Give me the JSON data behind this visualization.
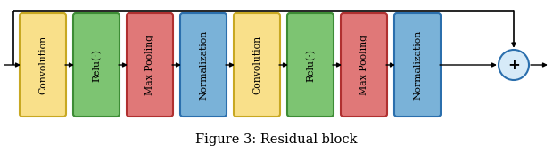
{
  "title": "Figure 3: Residual block",
  "title_fontsize": 10.5,
  "blocks": [
    {
      "label": "Convolution",
      "color": "#F9E08A",
      "edge": "#C8A822"
    },
    {
      "label": "Relu(·)",
      "color": "#7DC472",
      "edge": "#3D8C35"
    },
    {
      "label": "Max Pooling",
      "color": "#E07878",
      "edge": "#B03030"
    },
    {
      "label": "Normalization",
      "color": "#7AB2D8",
      "edge": "#2B6FAD"
    },
    {
      "label": "Convolution",
      "color": "#F9E08A",
      "edge": "#C8A822"
    },
    {
      "label": "Relu(·)",
      "color": "#7DC472",
      "edge": "#3D8C35"
    },
    {
      "label": "Max Pooling",
      "color": "#E07878",
      "edge": "#B03030"
    },
    {
      "label": "Normalization",
      "color": "#7AB2D8",
      "edge": "#2B6FAD"
    }
  ],
  "plus_color": "#D6EAF8",
  "plus_edge": "#2B6FAD",
  "bg_color": "#FFFFFF",
  "text_color": "#000000",
  "block_fontsize": 7.8,
  "arrow_color": "#000000",
  "fig_width": 6.2,
  "fig_height": 1.72
}
